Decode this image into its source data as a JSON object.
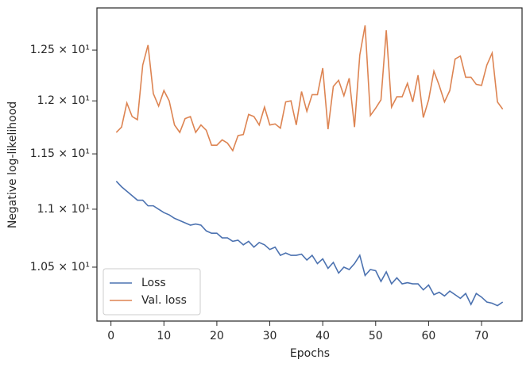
{
  "chart_data": {
    "type": "line",
    "xlabel": "Epochs",
    "ylabel": "Negative log-likelihood",
    "x": [
      1,
      2,
      3,
      4,
      5,
      6,
      7,
      8,
      9,
      10,
      11,
      12,
      13,
      14,
      15,
      16,
      17,
      18,
      19,
      20,
      21,
      22,
      23,
      24,
      25,
      26,
      27,
      28,
      29,
      30,
      31,
      32,
      33,
      34,
      35,
      36,
      37,
      38,
      39,
      40,
      41,
      42,
      43,
      44,
      45,
      46,
      47,
      48,
      49,
      50,
      51,
      52,
      53,
      54,
      55,
      56,
      57,
      58,
      59,
      60,
      61,
      62,
      63,
      64,
      65,
      66,
      67,
      68,
      69,
      70,
      71,
      72,
      73,
      74
    ],
    "series": [
      {
        "name": "Loss",
        "color": "#4c72b0",
        "values": [
          11.25,
          11.2,
          11.16,
          11.12,
          11.08,
          11.08,
          11.03,
          11.03,
          11.0,
          10.97,
          10.95,
          10.92,
          10.9,
          10.88,
          10.86,
          10.87,
          10.86,
          10.81,
          10.79,
          10.79,
          10.75,
          10.75,
          10.72,
          10.73,
          10.69,
          10.72,
          10.67,
          10.71,
          10.69,
          10.65,
          10.67,
          10.6,
          10.62,
          10.6,
          10.6,
          10.61,
          10.56,
          10.6,
          10.53,
          10.57,
          10.49,
          10.54,
          10.45,
          10.5,
          10.48,
          10.53,
          10.6,
          10.43,
          10.48,
          10.47,
          10.38,
          10.46,
          10.36,
          10.41,
          10.36,
          10.37,
          10.36,
          10.36,
          10.31,
          10.35,
          10.27,
          10.29,
          10.26,
          10.3,
          10.27,
          10.24,
          10.28,
          10.19,
          10.28,
          10.25,
          10.21,
          10.2,
          10.18,
          10.21
        ]
      },
      {
        "name": "Val. loss",
        "color": "#dd8452",
        "values": [
          11.7,
          11.75,
          11.98,
          11.85,
          11.82,
          12.35,
          12.55,
          12.07,
          11.95,
          12.1,
          12.0,
          11.77,
          11.7,
          11.83,
          11.85,
          11.7,
          11.77,
          11.72,
          11.58,
          11.58,
          11.63,
          11.6,
          11.53,
          11.67,
          11.68,
          11.87,
          11.85,
          11.77,
          11.94,
          11.77,
          11.78,
          11.74,
          11.99,
          12.0,
          11.77,
          12.09,
          11.9,
          12.06,
          12.06,
          12.32,
          11.73,
          12.14,
          12.2,
          12.05,
          12.22,
          11.75,
          12.45,
          12.75,
          11.86,
          11.93,
          12.01,
          12.7,
          11.94,
          12.04,
          12.04,
          12.17,
          11.99,
          12.25,
          11.84,
          12.01,
          12.29,
          12.15,
          11.99,
          12.1,
          12.41,
          12.44,
          12.23,
          12.23,
          12.16,
          12.15,
          12.35,
          12.47,
          11.99,
          11.92
        ]
      }
    ],
    "xlim": [
      -2.65,
      77.65
    ],
    "xticks": [
      0,
      10,
      20,
      30,
      40,
      50,
      60,
      70
    ],
    "ylim": [
      10.055,
      12.93
    ],
    "ylog": true,
    "yticks": [
      {
        "value": 10.5,
        "label": "1.05 × 10¹"
      },
      {
        "value": 11,
        "label": "1.1 × 10¹"
      },
      {
        "value": 11.5,
        "label": "1.15 × 10¹"
      },
      {
        "value": 12,
        "label": "1.2 × 10¹"
      },
      {
        "value": 12.5,
        "label": "1.25 × 10¹"
      }
    ],
    "legend": "lower left"
  }
}
